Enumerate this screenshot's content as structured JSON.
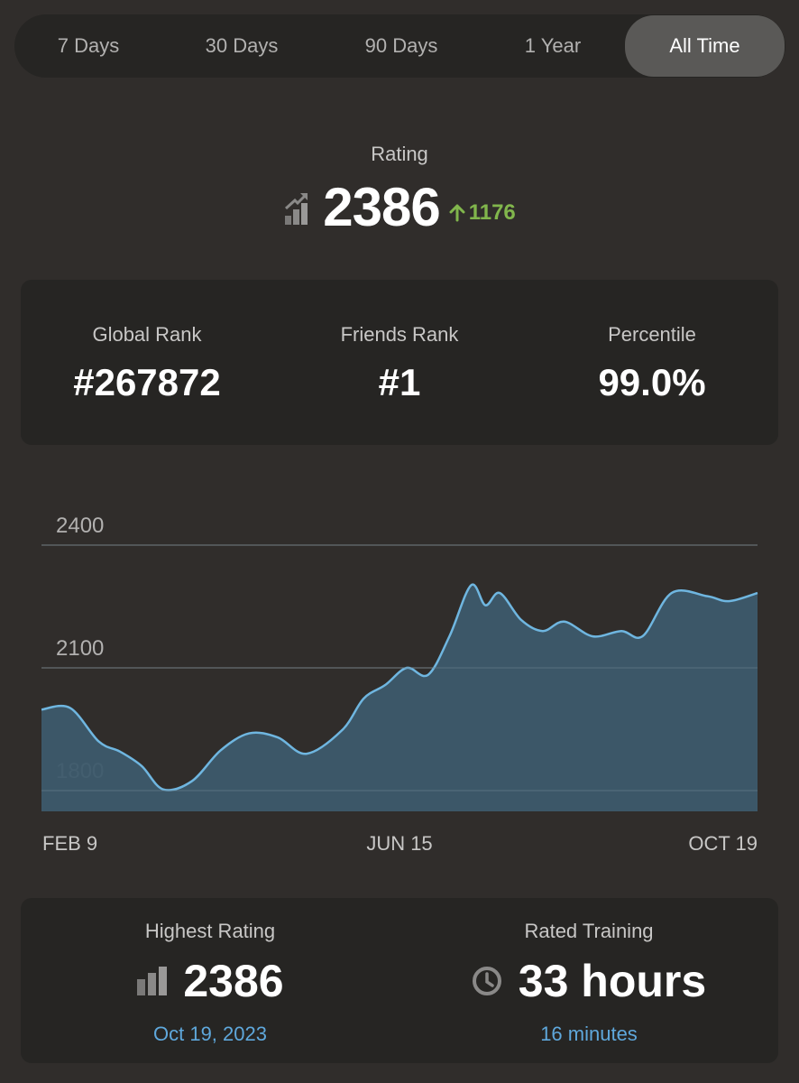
{
  "tabs": [
    {
      "label": "7 Days"
    },
    {
      "label": "30 Days"
    },
    {
      "label": "90 Days"
    },
    {
      "label": "1 Year"
    },
    {
      "label": "All Time",
      "active": true
    }
  ],
  "rating": {
    "label": "Rating",
    "value": "2386",
    "change": "1176",
    "change_direction": "up",
    "icon": "rating-trend-icon"
  },
  "ranks": [
    {
      "label": "Global Rank",
      "value": "#267872"
    },
    {
      "label": "Friends Rank",
      "value": "#1"
    },
    {
      "label": "Percentile",
      "value": "99.0%"
    }
  ],
  "chart_data": {
    "type": "area",
    "title": "",
    "xlabel": "",
    "ylabel": "",
    "x_ticks": [
      "FEB 9",
      "JUN 15",
      "OCT 19"
    ],
    "y_ticks": [
      2400,
      2100,
      1800
    ],
    "ylim": [
      1750,
      2400
    ],
    "grid": true,
    "series": [
      {
        "x": [
          0,
          4,
          8,
          11,
          14,
          17,
          21,
          25,
          29,
          33,
          37,
          42,
          45,
          48,
          51,
          54,
          57,
          60,
          62,
          64,
          67,
          70,
          73,
          77,
          81,
          84,
          88,
          93,
          96,
          100
        ],
        "values": [
          1998,
          2002,
          1920,
          1895,
          1860,
          1803,
          1823,
          1898,
          1940,
          1930,
          1890,
          1948,
          2025,
          2058,
          2100,
          2083,
          2178,
          2302,
          2253,
          2283,
          2217,
          2190,
          2213,
          2177,
          2190,
          2178,
          2283,
          2275,
          2263,
          2283
        ]
      }
    ]
  },
  "highest_rating": {
    "label": "Highest Rating",
    "value": "2386",
    "date": "Oct 19, 2023"
  },
  "rated_training": {
    "label": "Rated Training",
    "value": "33 hours",
    "sub": "16 minutes"
  },
  "colors": {
    "background": "#302d2b",
    "card": "#262523",
    "positive": "#81b64c",
    "link": "#5fa8dc",
    "chart_line": "#6fb6e0",
    "chart_fill": "#3d5a6b"
  }
}
